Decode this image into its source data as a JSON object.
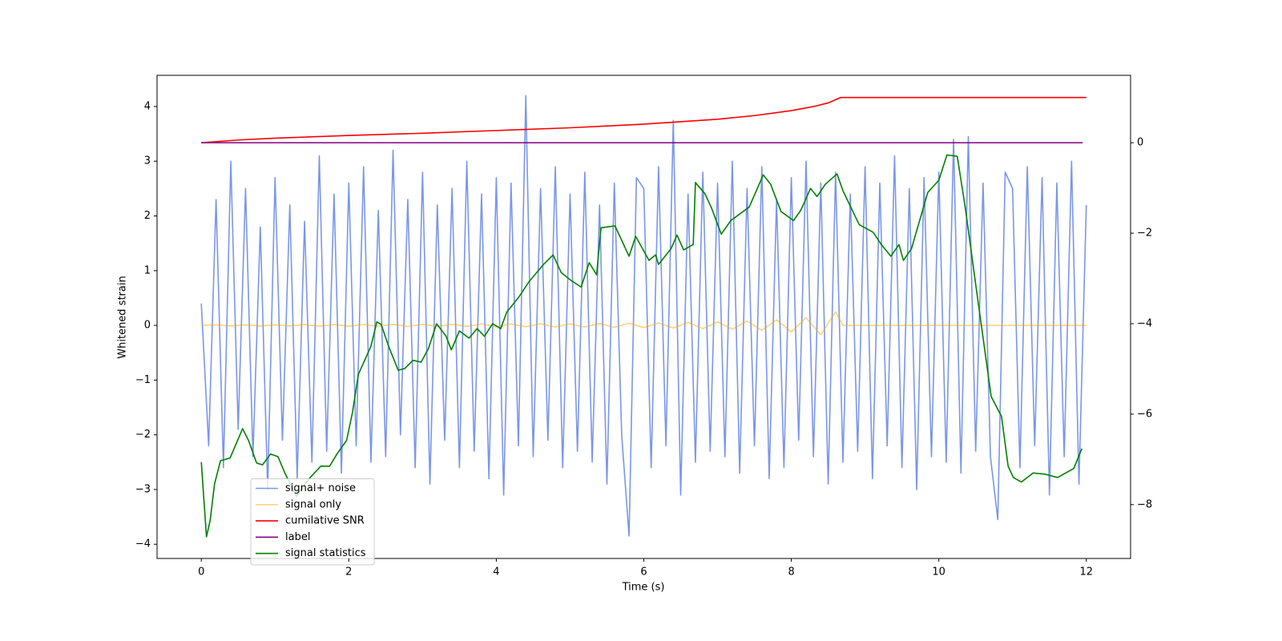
{
  "chart_data": {
    "type": "line",
    "xlabel": "Time (s)",
    "ylabel": "Whitened strain",
    "xlim": [
      -0.6,
      12.6
    ],
    "ylim": [
      -4.26,
      4.57
    ],
    "y2lim": [
      -9.19,
      1.49
    ],
    "xticks": [
      0,
      2,
      4,
      6,
      8,
      10,
      12
    ],
    "yticks": [
      {
        "value": -4,
        "label": "−4"
      },
      {
        "value": -3,
        "label": "−3"
      },
      {
        "value": -2,
        "label": "−2"
      },
      {
        "value": -1,
        "label": "−1"
      },
      0,
      1,
      2,
      3,
      4
    ],
    "y2ticks": [
      {
        "value": -8,
        "label": "−8"
      },
      {
        "value": -6,
        "label": "−6"
      },
      {
        "value": -4,
        "label": "−4"
      },
      {
        "value": -2,
        "label": "−2"
      },
      0
    ],
    "legend": "lower left",
    "series": [
      {
        "name": "signal+ noise",
        "color": "#4169e1",
        "alpha": 0.7,
        "axis": "y",
        "x": [
          0,
          0.1,
          0.2,
          0.3,
          0.4,
          0.5,
          0.6,
          0.7,
          0.8,
          0.9,
          1,
          1.1,
          1.2,
          1.3,
          1.4,
          1.5,
          1.6,
          1.7,
          1.8,
          1.9,
          2,
          2.1,
          2.2,
          2.3,
          2.4,
          2.5,
          2.6,
          2.7,
          2.8,
          2.9,
          3,
          3.1,
          3.2,
          3.3,
          3.4,
          3.5,
          3.6,
          3.7,
          3.8,
          3.9,
          4,
          4.1,
          4.2,
          4.3,
          4.4,
          4.5,
          4.6,
          4.7,
          4.8,
          4.9,
          5,
          5.1,
          5.2,
          5.3,
          5.4,
          5.5,
          5.6,
          5.7,
          5.8,
          5.9,
          6,
          6.1,
          6.2,
          6.3,
          6.4,
          6.5,
          6.6,
          6.7,
          6.8,
          6.9,
          7,
          7.1,
          7.2,
          7.3,
          7.4,
          7.5,
          7.6,
          7.7,
          7.8,
          7.9,
          8,
          8.1,
          8.2,
          8.3,
          8.4,
          8.5,
          8.6,
          8.7,
          8.8,
          8.9,
          9,
          9.1,
          9.2,
          9.3,
          9.4,
          9.5,
          9.6,
          9.7,
          9.8,
          9.9,
          10,
          10.1,
          10.2,
          10.3,
          10.4,
          10.5,
          10.6,
          10.7,
          10.8,
          10.9,
          11,
          11.1,
          11.2,
          11.3,
          11.4,
          11.5,
          11.6,
          11.7,
          11.8,
          11.9,
          12
        ],
        "values": [
          0.4,
          -2.2,
          2.3,
          -2.6,
          3.0,
          -1.9,
          2.5,
          -2.4,
          1.8,
          -3.0,
          2.7,
          -2.1,
          2.2,
          -2.8,
          1.9,
          -2.5,
          3.1,
          -2.3,
          2.4,
          -2.7,
          2.6,
          -2.2,
          2.9,
          -2.5,
          2.1,
          -2.4,
          3.2,
          -2.0,
          2.3,
          -2.6,
          2.8,
          -2.9,
          2.2,
          -2.1,
          2.5,
          -2.6,
          3.0,
          -2.3,
          2.4,
          -2.8,
          2.7,
          -3.1,
          2.6,
          -2.2,
          4.2,
          -2.4,
          2.5,
          -2.1,
          2.9,
          -2.6,
          2.4,
          -2.3,
          2.8,
          -2.5,
          2.2,
          -2.9,
          2.6,
          -2.0,
          -3.85,
          2.7,
          2.5,
          -2.6,
          2.9,
          -2.2,
          3.75,
          -3.1,
          2.4,
          -2.5,
          2.8,
          -2.3,
          2.6,
          -2.4,
          3.0,
          -2.7,
          2.5,
          -2.2,
          2.9,
          -2.8,
          2.3,
          -2.6,
          2.7,
          -2.1,
          3.0,
          -2.4,
          2.6,
          -2.9,
          2.8,
          -2.5,
          2.4,
          -2.3,
          2.9,
          -2.8,
          2.6,
          -2.2,
          3.1,
          -2.6,
          2.5,
          -3.0,
          2.7,
          -2.4,
          2.8,
          -2.5,
          3.4,
          -2.7,
          3.45,
          -2.3,
          2.6,
          -2.4,
          -3.55,
          2.8,
          2.5,
          -2.6,
          2.9,
          -2.2,
          2.7,
          -3.1,
          2.6,
          -2.4,
          3.0,
          -2.9,
          2.2
        ]
      },
      {
        "name": "signal only",
        "color": "#ffa500",
        "alpha": 0.5,
        "axis": "y",
        "x": [
          0,
          0.2,
          0.4,
          0.6,
          0.8,
          1,
          1.2,
          1.4,
          1.6,
          1.8,
          2,
          2.2,
          2.4,
          2.6,
          2.8,
          3,
          3.2,
          3.4,
          3.6,
          3.8,
          4,
          4.2,
          4.4,
          4.6,
          4.8,
          5,
          5.2,
          5.4,
          5.6,
          5.8,
          6,
          6.2,
          6.4,
          6.6,
          6.8,
          7,
          7.2,
          7.4,
          7.6,
          7.8,
          8,
          8.2,
          8.4,
          8.6,
          8.7,
          12
        ],
        "values": [
          0,
          0.01,
          -0.01,
          0.01,
          -0.01,
          0.01,
          -0.01,
          0.015,
          -0.015,
          0.015,
          -0.015,
          0.015,
          -0.015,
          0.02,
          -0.02,
          0.02,
          -0.02,
          0.02,
          -0.02,
          0.025,
          -0.025,
          0.025,
          -0.025,
          0.03,
          -0.03,
          0.03,
          -0.03,
          0.035,
          -0.035,
          0.04,
          -0.04,
          0.045,
          -0.05,
          0.055,
          -0.06,
          0.065,
          -0.07,
          0.08,
          -0.09,
          0.1,
          -0.12,
          0.14,
          -0.17,
          0.25,
          0,
          0
        ]
      },
      {
        "name": "cumilative SNR",
        "color": "#ff0000",
        "alpha": 1,
        "axis": "y2",
        "x": [
          0,
          0.5,
          1,
          2,
          3,
          4,
          5,
          6,
          7,
          7.5,
          8,
          8.3,
          8.5,
          8.67,
          12
        ],
        "values": [
          0,
          0.06,
          0.1,
          0.16,
          0.21,
          0.27,
          0.33,
          0.41,
          0.52,
          0.6,
          0.71,
          0.8,
          0.88,
          1.0,
          1.0
        ]
      },
      {
        "name": "label",
        "color": "#800080",
        "alpha": 1,
        "axis": "y2",
        "x": [
          0,
          11.95
        ],
        "values": [
          0,
          0
        ]
      },
      {
        "name": "signal statistics",
        "color": "#008000",
        "alpha": 1,
        "axis": "y2",
        "x": [
          0,
          0.07,
          0.12,
          0.18,
          0.26,
          0.39,
          0.56,
          0.64,
          0.75,
          0.83,
          0.94,
          1.04,
          1.13,
          1.29,
          1.46,
          1.62,
          1.74,
          1.84,
          1.97,
          2.05,
          2.13,
          2.3,
          2.38,
          2.44,
          2.54,
          2.67,
          2.76,
          2.87,
          2.98,
          3.08,
          3.19,
          3.32,
          3.39,
          3.5,
          3.63,
          3.74,
          3.84,
          3.95,
          4.06,
          4.14,
          4.31,
          4.44,
          4.64,
          4.77,
          4.88,
          5.01,
          5.15,
          5.26,
          5.36,
          5.42,
          5.61,
          5.8,
          5.89,
          6.07,
          6.16,
          6.2,
          6.37,
          6.45,
          6.54,
          6.67,
          6.7,
          6.83,
          6.92,
          7.05,
          7.18,
          7.43,
          7.62,
          7.72,
          7.86,
          8.03,
          8.13,
          8.26,
          8.35,
          8.46,
          8.62,
          8.7,
          8.92,
          9.11,
          9.22,
          9.35,
          9.46,
          9.52,
          9.63,
          9.85,
          10.0,
          10.11,
          10.25,
          10.36,
          10.5,
          10.71,
          10.85,
          10.94,
          11.01,
          11.12,
          11.28,
          11.45,
          11.61,
          11.83,
          11.94
        ],
        "values": [
          -7.06,
          -8.71,
          -8.35,
          -7.54,
          -7.03,
          -6.97,
          -6.32,
          -6.58,
          -7.08,
          -7.12,
          -6.88,
          -6.94,
          -7.29,
          -7.82,
          -7.43,
          -7.15,
          -7.15,
          -6.88,
          -6.58,
          -5.96,
          -5.12,
          -4.5,
          -3.96,
          -4.02,
          -4.5,
          -5.03,
          -4.99,
          -4.81,
          -4.85,
          -4.55,
          -4.0,
          -4.28,
          -4.58,
          -4.16,
          -4.32,
          -4.11,
          -4.28,
          -4.0,
          -4.11,
          -3.75,
          -3.4,
          -3.08,
          -2.69,
          -2.48,
          -2.87,
          -3.04,
          -3.19,
          -2.65,
          -2.92,
          -1.88,
          -1.84,
          -2.51,
          -2.07,
          -2.6,
          -2.48,
          -2.69,
          -2.34,
          -2.04,
          -2.37,
          -2.25,
          -0.88,
          -1.13,
          -1.45,
          -2.02,
          -1.72,
          -1.42,
          -0.71,
          -0.92,
          -1.52,
          -1.72,
          -1.49,
          -1.01,
          -1.19,
          -0.92,
          -0.69,
          -1.06,
          -1.81,
          -1.98,
          -2.25,
          -2.51,
          -2.25,
          -2.6,
          -2.34,
          -1.1,
          -0.83,
          -0.27,
          -0.3,
          -1.45,
          -3.13,
          -5.61,
          -6.05,
          -7.15,
          -7.4,
          -7.5,
          -7.3,
          -7.33,
          -7.4,
          -7.2,
          -6.76
        ]
      }
    ]
  }
}
